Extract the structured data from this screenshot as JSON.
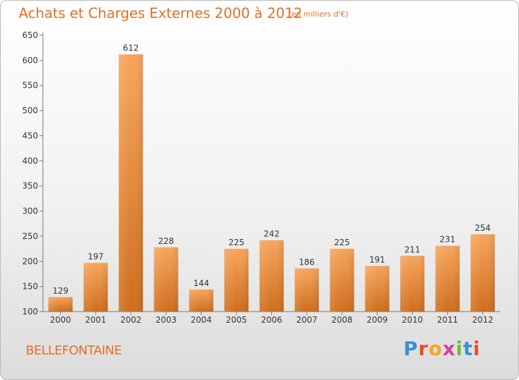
{
  "header": {
    "title": "Achats et Charges Externes 2000 à 2012",
    "unit": "(en milliers d'€)"
  },
  "footer": {
    "place": "BELLEFONTAINE",
    "brand": "Proxiti"
  },
  "colors": {
    "accent": "#e0702a",
    "bar_light": "#f7a55c",
    "bar_dark": "#cf6e1c"
  },
  "chart_data": {
    "type": "bar",
    "title": "Achats et Charges Externes 2000 à 2012",
    "subtitle": "(en milliers d'€)",
    "xlabel": "",
    "ylabel": "",
    "categories": [
      "2000",
      "2001",
      "2002",
      "2003",
      "2004",
      "2005",
      "2006",
      "2007",
      "2008",
      "2009",
      "2010",
      "2011",
      "2012"
    ],
    "values": [
      129,
      197,
      612,
      228,
      144,
      225,
      242,
      186,
      225,
      191,
      211,
      231,
      254
    ],
    "ylim": [
      100,
      650
    ],
    "yticks": [
      100,
      150,
      200,
      250,
      300,
      350,
      400,
      450,
      500,
      550,
      600,
      650
    ],
    "grid": false,
    "legend": "none"
  }
}
